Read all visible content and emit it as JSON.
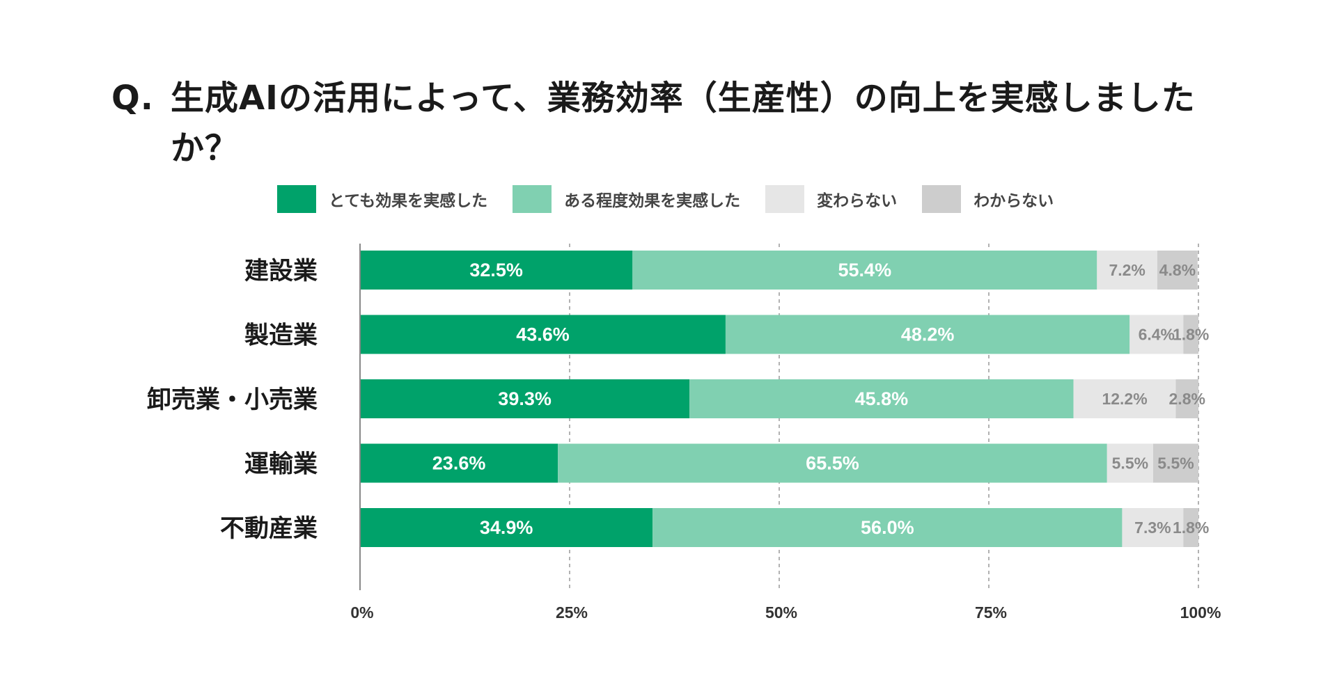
{
  "title": {
    "prefix": "Q.",
    "text": "生成AIの活用によって、業務効率（生産性）の向上を実感しましたか？"
  },
  "colors": {
    "very": "#00a26a",
    "somewhat": "#80d0b1",
    "no_change": "#e6e6e6",
    "unknown": "#cdcdcd",
    "grid": "#999999",
    "axis": "#888888",
    "label_white": "#ffffff",
    "label_gray": "#8a8a8a"
  },
  "chart_data": {
    "type": "bar",
    "orientation": "horizontal",
    "stacked": true,
    "title": "Q. 生成AIの活用によって、業務効率（生産性）の向上を実感しましたか？",
    "categories": [
      "建設業",
      "製造業",
      "卸売業・小売業",
      "運輸業",
      "不動産業"
    ],
    "series": [
      {
        "name": "とても効果を実感した",
        "values": [
          32.5,
          43.6,
          39.3,
          23.6,
          34.9
        ]
      },
      {
        "name": "ある程度効果を実感した",
        "values": [
          55.4,
          48.2,
          45.8,
          65.5,
          56.0
        ]
      },
      {
        "name": "変わらない",
        "values": [
          7.2,
          6.4,
          12.2,
          5.5,
          7.3
        ]
      },
      {
        "name": "わからない",
        "values": [
          4.8,
          1.8,
          2.8,
          5.5,
          1.8
        ]
      }
    ],
    "value_labels": [
      [
        "32.5%",
        "55.4%",
        "7.2%",
        "4.8%"
      ],
      [
        "43.6%",
        "48.2%",
        "6.4%",
        "1.8%"
      ],
      [
        "39.3%",
        "45.8%",
        "12.2%",
        "2.8%"
      ],
      [
        "23.6%",
        "65.5%",
        "5.5%",
        "5.5%"
      ],
      [
        "34.9%",
        "56.0%",
        "7.3%",
        "1.8%"
      ]
    ],
    "x_ticks": [
      0,
      25,
      50,
      75,
      100
    ],
    "x_tick_labels": [
      "0%",
      "25%",
      "50%",
      "75%",
      "100%"
    ],
    "xlim": [
      0,
      100
    ],
    "xlabel": "",
    "ylabel": "",
    "grid": "vertical-dashed",
    "legend": "top"
  }
}
